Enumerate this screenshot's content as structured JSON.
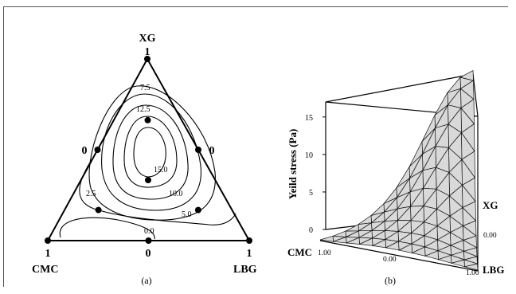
{
  "chart_data": [
    {
      "type": "ternary-contour",
      "panel_label": "(a)",
      "vertices": {
        "top": "XG",
        "left": "CMC",
        "right": "LBG"
      },
      "vertex_values": {
        "top": "1",
        "left": "1",
        "right": "1"
      },
      "edge_midpoint_values": {
        "left_edge": "0",
        "right_edge": "0",
        "bottom_edge": "0"
      },
      "design_points": [
        {
          "CMC": 0,
          "LBG": 0,
          "XG": 1
        },
        {
          "CMC": 1,
          "LBG": 0,
          "XG": 0
        },
        {
          "CMC": 0,
          "LBG": 1,
          "XG": 0
        },
        {
          "CMC": 0.5,
          "LBG": 0,
          "XG": 0.5
        },
        {
          "CMC": 0,
          "LBG": 0.5,
          "XG": 0.5
        },
        {
          "CMC": 0.5,
          "LBG": 0.5,
          "XG": 0
        },
        {
          "CMC": 0.33,
          "LBG": 0.33,
          "XG": 0.33
        },
        {
          "CMC": 0.17,
          "LBG": 0.17,
          "XG": 0.67
        },
        {
          "CMC": 0.67,
          "LBG": 0.17,
          "XG": 0.17
        },
        {
          "CMC": 0.17,
          "LBG": 0.67,
          "XG": 0.17
        }
      ],
      "contour_labels": [
        "0.0",
        "2.5",
        "5.0",
        "7.5",
        "10.0",
        "12.5",
        "15.0"
      ]
    },
    {
      "type": "surface-3d",
      "panel_label": "(b)",
      "zlabel": "Yeild stress (Pa)",
      "z_ticks": [
        "0",
        "5",
        "10",
        "15"
      ],
      "zlim": [
        0,
        17
      ],
      "axes": {
        "cmc": {
          "label": "CMC",
          "ticks": [
            "1.00",
            "0.00"
          ]
        },
        "lbg": {
          "label": "LBG",
          "ticks": [
            "1.00"
          ]
        },
        "xg": {
          "label": "XG",
          "ticks": [
            "0.00"
          ]
        }
      },
      "peak": {
        "XG": 1,
        "CMC": 0,
        "LBG": 0,
        "value": 16.5
      }
    }
  ]
}
